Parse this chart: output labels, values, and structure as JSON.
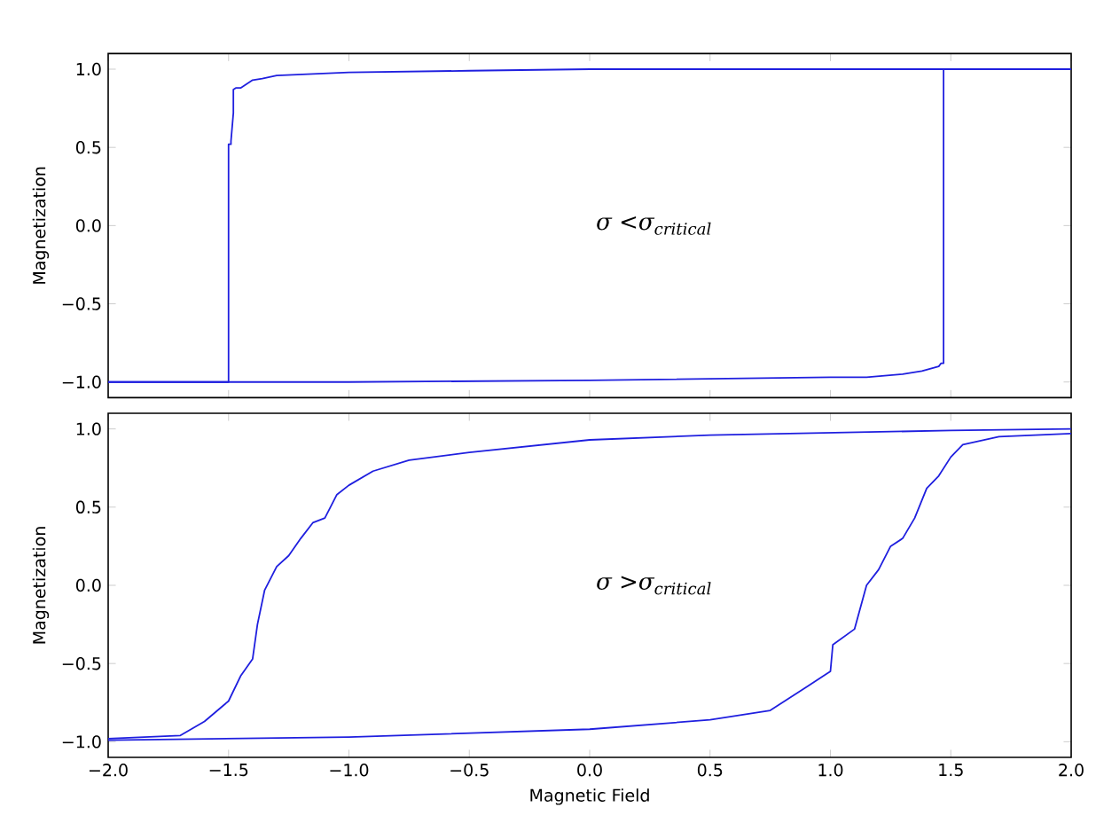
{
  "chart_data": [
    {
      "type": "line",
      "ylabel": "Magnetization",
      "annotations": [
        "σ <σ$_{critical}$"
      ],
      "xlim": [
        -2,
        2
      ],
      "ylim": [
        -1.1,
        1.1
      ],
      "tick_labels": "y",
      "marker": "none",
      "xticks": [
        -2,
        -1.5,
        -1,
        -0.5,
        0,
        0.5,
        1,
        1.5,
        2
      ],
      "yticks": [
        {
          "value": -1,
          "label": "−1.0"
        },
        {
          "value": -0.5,
          "label": "−0.5"
        },
        {
          "value": 0,
          "label": "0.0"
        },
        {
          "value": 0.5,
          "label": "0.5"
        },
        {
          "value": 1,
          "label": "1.0"
        }
      ],
      "series": [
        {
          "color": "#1f1fdf",
          "x": [
            2,
            1.0,
            0,
            -0.5,
            -1.0,
            -1.3,
            -1.36,
            -1.4,
            -1.45,
            -1.47,
            -1.48,
            -1.48,
            -1.49,
            -1.49,
            -1.5,
            -1.5,
            -2
          ],
          "values": [
            1,
            1,
            1,
            0.99,
            0.98,
            0.96,
            0.94,
            0.93,
            0.88,
            0.88,
            0.87,
            0.72,
            0.54,
            0.52,
            0.52,
            -1,
            -1
          ]
        },
        {
          "color": "#1f1fdf",
          "x": [
            -2,
            -1,
            0,
            0.5,
            1.0,
            1.15,
            1.3,
            1.38,
            1.45,
            1.46,
            1.47,
            1.47,
            2
          ],
          "values": [
            -1,
            -1,
            -0.99,
            -0.98,
            -0.97,
            -0.97,
            -0.95,
            -0.93,
            -0.9,
            -0.88,
            -0.88,
            1,
            1
          ]
        }
      ]
    },
    {
      "type": "line",
      "xlabel": "Magnetic Field",
      "ylabel": "Magnetization",
      "annotations": [
        "σ >σ$_{critical}$"
      ],
      "xlim": [
        -2,
        2
      ],
      "ylim": [
        -1.1,
        1.1
      ],
      "marker": "none",
      "xticks": [
        {
          "value": -2,
          "label": "−2.0"
        },
        {
          "value": -1.5,
          "label": "−1.5"
        },
        {
          "value": -1,
          "label": "−1.0"
        },
        {
          "value": -0.5,
          "label": "−0.5"
        },
        {
          "value": 0,
          "label": "0.0"
        },
        {
          "value": 0.5,
          "label": "0.5"
        },
        {
          "value": 1,
          "label": "1.0"
        },
        {
          "value": 1.5,
          "label": "1.5"
        },
        {
          "value": 2,
          "label": "2.0"
        }
      ],
      "yticks": [
        {
          "value": -1,
          "label": "−1.0"
        },
        {
          "value": -0.5,
          "label": "−0.5"
        },
        {
          "value": 0,
          "label": "0.0"
        },
        {
          "value": 0.5,
          "label": "0.5"
        },
        {
          "value": 1,
          "label": "1.0"
        }
      ],
      "series": [
        {
          "color": "#1f1fdf",
          "x": [
            2,
            1.5,
            0.5,
            0,
            -0.5,
            -0.75,
            -0.9,
            -1.0,
            -1.05,
            -1.1,
            -1.15,
            -1.2,
            -1.25,
            -1.3,
            -1.35,
            -1.38,
            -1.4,
            -1.45,
            -1.5,
            -1.6,
            -1.7,
            -2
          ],
          "values": [
            1.0,
            0.99,
            0.96,
            0.93,
            0.85,
            0.8,
            0.73,
            0.64,
            0.58,
            0.43,
            0.4,
            0.3,
            0.19,
            0.12,
            -0.03,
            -0.25,
            -0.47,
            -0.58,
            -0.74,
            -0.87,
            -0.96,
            -0.98
          ]
        },
        {
          "color": "#1f1fdf",
          "x": [
            -2,
            -1,
            0,
            0.5,
            0.75,
            0.9,
            1.0,
            1.01,
            1.1,
            1.15,
            1.2,
            1.25,
            1.3,
            1.35,
            1.4,
            1.45,
            1.5,
            1.55,
            1.7,
            2
          ],
          "values": [
            -0.99,
            -0.97,
            -0.92,
            -0.86,
            -0.8,
            -0.65,
            -0.55,
            -0.38,
            -0.28,
            0.0,
            0.1,
            0.25,
            0.3,
            0.43,
            0.62,
            0.7,
            0.82,
            0.9,
            0.95,
            0.97
          ]
        }
      ]
    }
  ]
}
